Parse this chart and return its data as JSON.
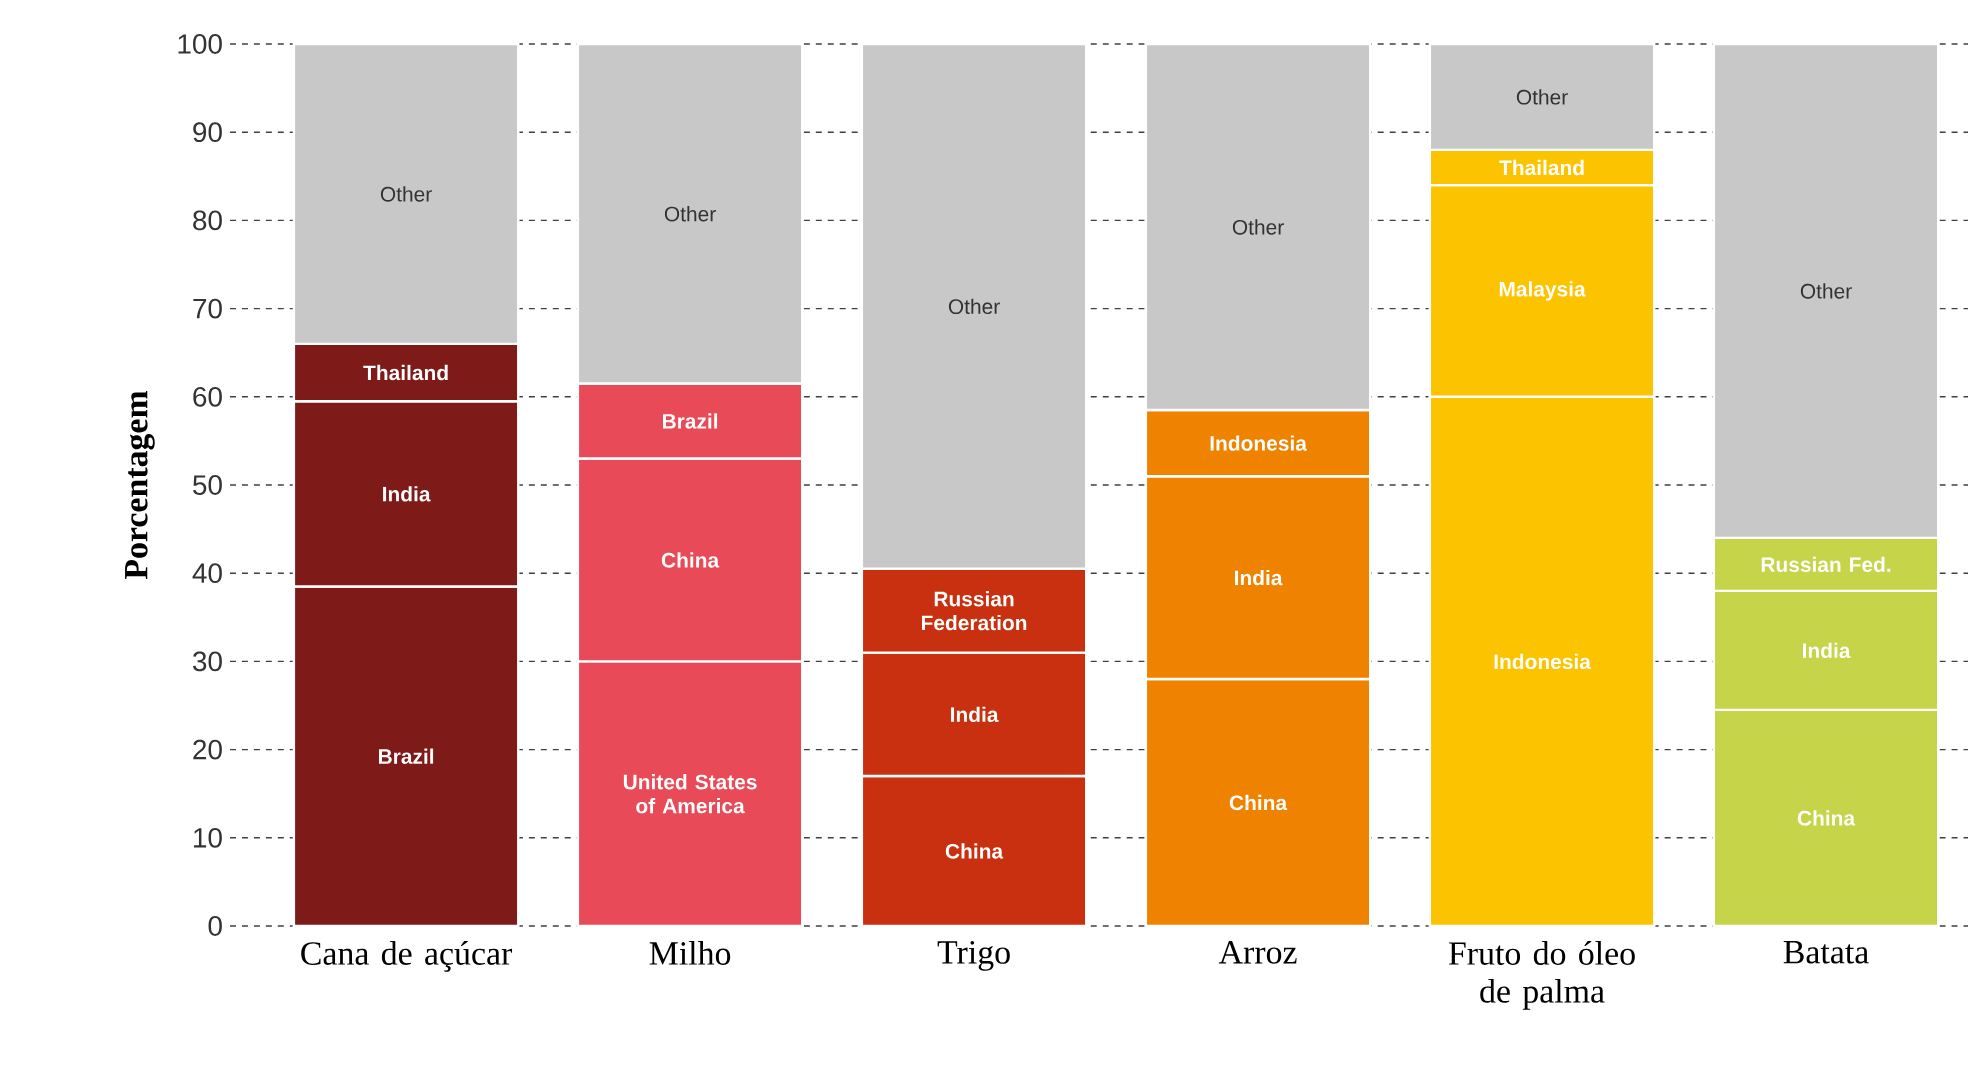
{
  "chart_data": {
    "type": "bar",
    "stacked": true,
    "ylabel": "Porcentagem",
    "categories": [
      "Cana de açúcar",
      "Milho",
      "Trigo",
      "Arroz",
      "Fruto do óleo de palma",
      "Batata"
    ],
    "series": [
      {
        "colors": [
          "#7e1a18",
          "#e84a58",
          "#c93010",
          "#ef8300",
          "#fcc400",
          "#c5d449"
        ],
        "values": [
          38.5,
          30,
          17,
          28,
          60,
          24.5
        ]
      },
      {
        "colors": [
          "#7e1a18",
          "#e84a58",
          "#c93010",
          "#ef8300",
          "#fcc400",
          "#c5d449"
        ],
        "values": [
          21,
          23,
          14,
          23,
          24,
          13.5
        ]
      },
      {
        "colors": [
          "#7e1a18",
          "#e84a58",
          "#c93010",
          "#ef8300",
          "#fcc400",
          "#c5d449"
        ],
        "values": [
          6.5,
          8.5,
          9.5,
          7.5,
          4,
          6
        ]
      },
      {
        "colors": [
          "#c8c8c8",
          "#c8c8c8",
          "#c8c8c8",
          "#c8c8c8",
          "#c8c8c8",
          "#c8c8c8"
        ],
        "values": [
          34,
          38.5,
          59.5,
          41.5,
          12,
          56
        ]
      }
    ],
    "ylim": [
      0,
      100
    ],
    "yticks": [
      0,
      10,
      20,
      30,
      40,
      50,
      60,
      70,
      80,
      90,
      100
    ],
    "grid": "y",
    "annotations": [
      "Brazil",
      "India",
      "Thailand",
      "Other",
      "United States of America",
      "China",
      "Brazil",
      "Other",
      "China",
      "India",
      "Russian Federation",
      "Other",
      "China",
      "India",
      "Indonesia",
      "Other",
      "Indonesia",
      "Malaysia",
      "Thailand",
      "Other",
      "China",
      "India",
      "Russian Fed.",
      "Other"
    ]
  }
}
